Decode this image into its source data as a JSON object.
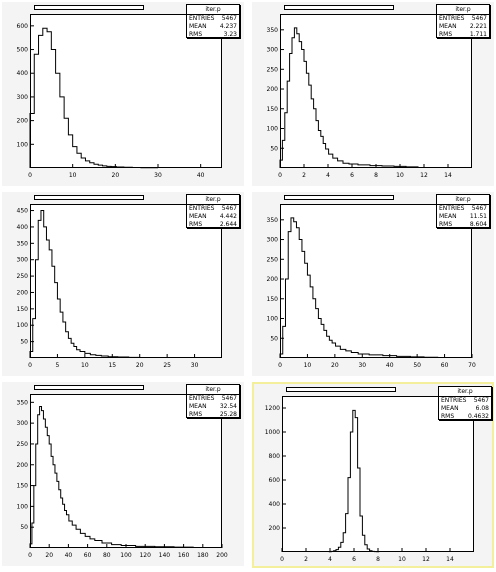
{
  "chart_data": [
    {
      "type": "histogram",
      "stats": {
        "name": "iter.p",
        "entries_label": "ENTRIES",
        "entries": "5467",
        "mean_label": "MEAN",
        "mean": "4.237",
        "rms_label": "RMS",
        "rms": "3.23"
      },
      "xlim": [
        0,
        45
      ],
      "ylim": [
        0,
        650
      ],
      "xticks": [
        "0",
        "10",
        "20",
        "30",
        "40"
      ],
      "xtick_values": [
        0,
        10,
        20,
        30,
        40
      ],
      "yticks": [
        "100",
        "200",
        "300",
        "400",
        "500",
        "600"
      ],
      "ytick_values": [
        100,
        200,
        300,
        400,
        500,
        600
      ],
      "x": [
        0.5,
        1.5,
        2.5,
        3.5,
        4.5,
        5.5,
        6.5,
        7.5,
        8.5,
        9.5,
        10.5,
        11.5,
        12.5,
        13.5,
        14.5,
        15.5,
        16.5,
        17.5,
        18.5,
        19.5,
        21,
        23,
        25,
        27,
        29
      ],
      "values": [
        230,
        480,
        560,
        590,
        575,
        500,
        400,
        300,
        210,
        140,
        90,
        62,
        42,
        30,
        22,
        16,
        12,
        9,
        7,
        6,
        4,
        3,
        2,
        1,
        1
      ]
    },
    {
      "type": "histogram",
      "stats": {
        "name": "iter.p",
        "entries_label": "ENTRIES",
        "entries": "5467",
        "mean_label": "MEAN",
        "mean": "2.221",
        "rms_label": "RMS",
        "rms": "1.711"
      },
      "xlim": [
        0,
        16
      ],
      "ylim": [
        0,
        390
      ],
      "xticks": [
        "0",
        "2",
        "4",
        "6",
        "8",
        "10",
        "12",
        "14"
      ],
      "xtick_values": [
        0,
        2,
        4,
        6,
        8,
        10,
        12,
        14
      ],
      "yticks": [
        "50",
        "100",
        "150",
        "200",
        "250",
        "300",
        "350"
      ],
      "ytick_values": [
        50,
        100,
        150,
        200,
        250,
        300,
        350
      ],
      "x": [
        0.1,
        0.3,
        0.5,
        0.7,
        0.9,
        1.1,
        1.3,
        1.5,
        1.7,
        1.9,
        2.1,
        2.3,
        2.5,
        2.7,
        2.9,
        3.1,
        3.3,
        3.5,
        3.7,
        3.9,
        4.2,
        4.6,
        5.0,
        5.5,
        6.0,
        7.0,
        8.0,
        9.0,
        10.0,
        11.0
      ],
      "values": [
        20,
        70,
        140,
        220,
        290,
        330,
        355,
        340,
        320,
        300,
        270,
        240,
        210,
        175,
        150,
        120,
        95,
        80,
        62,
        48,
        35,
        25,
        18,
        12,
        10,
        8,
        6,
        5,
        4,
        3
      ]
    },
    {
      "type": "histogram",
      "stats": {
        "name": "iter.p",
        "entries_label": "ENTRIES",
        "entries": "5467",
        "mean_label": "MEAN",
        "mean": "4.442",
        "rms_label": "RMS",
        "rms": "2.644"
      },
      "xlim": [
        0,
        35
      ],
      "ylim": [
        0,
        470
      ],
      "xticks": [
        "0",
        "5",
        "10",
        "15",
        "20",
        "25",
        "30"
      ],
      "xtick_values": [
        0,
        5,
        10,
        15,
        20,
        25,
        30
      ],
      "yticks": [
        "50",
        "100",
        "150",
        "200",
        "250",
        "300",
        "350",
        "400",
        "450"
      ],
      "ytick_values": [
        50,
        100,
        150,
        200,
        250,
        300,
        350,
        400,
        450
      ],
      "x": [
        0.25,
        0.75,
        1.25,
        1.75,
        2.25,
        2.75,
        3.25,
        3.75,
        4.25,
        4.75,
        5.25,
        5.75,
        6.25,
        6.75,
        7.25,
        7.75,
        8.25,
        8.75,
        9.5,
        10.5,
        11.5,
        12.5,
        13.5,
        15,
        17,
        19
      ],
      "values": [
        20,
        120,
        300,
        420,
        450,
        400,
        360,
        330,
        280,
        230,
        180,
        140,
        110,
        80,
        60,
        45,
        35,
        25,
        20,
        14,
        10,
        8,
        6,
        4,
        3,
        2
      ]
    },
    {
      "type": "histogram",
      "stats": {
        "name": "iter.p",
        "entries_label": "ENTRIES",
        "entries": "5467",
        "mean_label": "MEAN",
        "mean": "11.51",
        "rms_label": "RMS",
        "rms": "8.604"
      },
      "xlim": [
        0,
        70
      ],
      "ylim": [
        0,
        390
      ],
      "xticks": [
        "0",
        "10",
        "20",
        "30",
        "40",
        "50",
        "60",
        "70"
      ],
      "xtick_values": [
        0,
        10,
        20,
        30,
        40,
        50,
        60,
        70
      ],
      "yticks": [
        "50",
        "100",
        "150",
        "200",
        "250",
        "300",
        "350"
      ],
      "ytick_values": [
        50,
        100,
        150,
        200,
        250,
        300,
        350
      ],
      "x": [
        0.5,
        1.5,
        2.5,
        3.5,
        4.5,
        5.5,
        6.5,
        7.5,
        8.5,
        9.5,
        10.5,
        11.5,
        12.5,
        13.5,
        14.5,
        15.5,
        16.5,
        17.5,
        18.5,
        19.5,
        21,
        23,
        25,
        27,
        30,
        35,
        40,
        45,
        50,
        55
      ],
      "values": [
        10,
        80,
        200,
        320,
        355,
        345,
        330,
        300,
        270,
        240,
        210,
        180,
        150,
        125,
        100,
        85,
        70,
        55,
        45,
        38,
        30,
        22,
        18,
        14,
        10,
        8,
        6,
        4,
        3,
        2
      ]
    },
    {
      "type": "histogram",
      "stats": {
        "name": "iter.p",
        "entries_label": "ENTRIES",
        "entries": "5467",
        "mean_label": "MEAN",
        "mean": "32.54",
        "rms_label": "RMS",
        "rms": "25.28"
      },
      "xlim": [
        0,
        200
      ],
      "ylim": [
        0,
        370
      ],
      "xticks": [
        "0",
        "20",
        "40",
        "60",
        "80",
        "100",
        "120",
        "140",
        "160",
        "180",
        "200"
      ],
      "xtick_values": [
        0,
        20,
        40,
        60,
        80,
        100,
        120,
        140,
        160,
        180,
        200
      ],
      "yticks": [
        "50",
        "100",
        "150",
        "200",
        "250",
        "300",
        "350"
      ],
      "ytick_values": [
        50,
        100,
        150,
        200,
        250,
        300,
        350
      ],
      "x": [
        1,
        3,
        5,
        7,
        9,
        11,
        13,
        15,
        17,
        19,
        21,
        23,
        25,
        27,
        29,
        31,
        33,
        35,
        37,
        39,
        42,
        46,
        50,
        55,
        60,
        65,
        70,
        80,
        90,
        100,
        120,
        140,
        160
      ],
      "values": [
        10,
        60,
        150,
        250,
        320,
        340,
        330,
        310,
        290,
        270,
        250,
        220,
        200,
        180,
        160,
        140,
        120,
        105,
        90,
        80,
        65,
        55,
        45,
        35,
        28,
        22,
        18,
        12,
        8,
        6,
        4,
        3,
        2
      ]
    },
    {
      "type": "histogram",
      "stats": {
        "name": "iter.p",
        "entries_label": "ENTRIES",
        "entries": "5467",
        "mean_label": "MEAN",
        "mean": "6.08",
        "rms_label": "RMS",
        "rms": "0.4632"
      },
      "xlim": [
        0,
        16
      ],
      "ylim": [
        0,
        1300
      ],
      "xticks": [
        "0",
        "2",
        "4",
        "6",
        "8",
        "10",
        "12",
        "14"
      ],
      "xtick_values": [
        0,
        2,
        4,
        6,
        8,
        10,
        12,
        14
      ],
      "yticks": [
        "200",
        "400",
        "600",
        "800",
        "1000",
        "1200"
      ],
      "ytick_values": [
        200,
        400,
        600,
        800,
        1000,
        1200
      ],
      "x": [
        4.0,
        4.2,
        4.4,
        4.6,
        4.8,
        5.0,
        5.2,
        5.4,
        5.6,
        5.8,
        6.0,
        6.2,
        6.4,
        6.6,
        6.8,
        7.0,
        7.2,
        7.4,
        7.6,
        7.8,
        8.0
      ],
      "values": [
        2,
        5,
        10,
        20,
        40,
        80,
        160,
        320,
        620,
        1000,
        1180,
        1120,
        700,
        300,
        140,
        60,
        25,
        10,
        5,
        3,
        2
      ]
    }
  ]
}
